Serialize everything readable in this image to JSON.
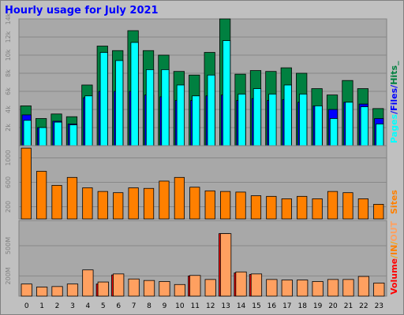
{
  "page": {
    "title": "Hourly usage for July 2021"
  },
  "colors": {
    "hits": "#008040",
    "files": "#0000ff",
    "pages": "#00ffff",
    "sites": "#ff8000",
    "volume_in": "#ff0000",
    "volume_out": "#ffa060",
    "panel_bg": "#a8a8a8",
    "frame_bg": "#c0c0c0"
  },
  "chart_data": [
    {
      "type": "bar",
      "panel": "hits-files-pages",
      "x": [
        "0",
        "1",
        "2",
        "3",
        "4",
        "5",
        "6",
        "7",
        "8",
        "9",
        "10",
        "11",
        "12",
        "13",
        "14",
        "15",
        "16",
        "17",
        "18",
        "19",
        "20",
        "21",
        "22",
        "23"
      ],
      "ylim": [
        0,
        14000
      ],
      "yticks": [
        "2k",
        "4k",
        "6k",
        "8k",
        "10k",
        "12k",
        "14k"
      ],
      "ytick_values": [
        2000,
        4000,
        6000,
        8000,
        10000,
        12000,
        14000
      ],
      "series": [
        {
          "name": "Hits",
          "color": "#008040",
          "values": [
            4400,
            3000,
            3500,
            3200,
            6700,
            11000,
            10500,
            12700,
            10500,
            10000,
            8200,
            7800,
            10300,
            14000,
            7900,
            8300,
            8200,
            8600,
            8000,
            6300,
            5600,
            7200,
            6300,
            4100
          ]
        },
        {
          "name": "Files",
          "color": "#0000ff",
          "values": [
            3400,
            2000,
            2700,
            2400,
            5300,
            6000,
            6000,
            6000,
            5600,
            5400,
            5000,
            5000,
            5500,
            5600,
            5000,
            5200,
            5000,
            5100,
            4800,
            4400,
            4000,
            4800,
            4600,
            3000
          ]
        },
        {
          "name": "Pages",
          "color": "#00ffff",
          "values": [
            2800,
            2000,
            2600,
            2300,
            5500,
            10300,
            9400,
            11400,
            8400,
            8400,
            6700,
            5500,
            7800,
            11600,
            5700,
            6300,
            5700,
            6700,
            5700,
            4400,
            3000,
            4800,
            4300,
            2400
          ]
        }
      ],
      "legend": [
        "Pages",
        "/",
        "Files",
        "/",
        "Hits",
        "_"
      ]
    },
    {
      "type": "bar",
      "panel": "sites",
      "ylim": [
        0,
        1200
      ],
      "yticks": [
        "200",
        "600",
        "1000"
      ],
      "ytick_values": [
        200,
        600,
        1000
      ],
      "series": [
        {
          "name": "Sites",
          "color": "#ff8000",
          "values": [
            1160,
            780,
            550,
            680,
            510,
            450,
            430,
            510,
            500,
            620,
            680,
            520,
            460,
            450,
            440,
            380,
            370,
            330,
            370,
            330,
            450,
            430,
            330,
            240
          ]
        }
      ],
      "legend": [
        "Sites"
      ]
    },
    {
      "type": "bar",
      "panel": "volume",
      "ylim": [
        0,
        750
      ],
      "yticks": [
        "200M",
        "500M"
      ],
      "ytick_values": [
        200,
        500
      ],
      "series": [
        {
          "name": "IN",
          "color": "#ff0000",
          "values": [
            0,
            0,
            0,
            0,
            0,
            120,
            210,
            0,
            0,
            0,
            0,
            200,
            0,
            620,
            230,
            215,
            0,
            0,
            0,
            0,
            0,
            0,
            0,
            0
          ]
        },
        {
          "name": "OUT",
          "color": "#ffa060",
          "values": [
            120,
            90,
            95,
            120,
            260,
            140,
            220,
            170,
            155,
            145,
            115,
            205,
            165,
            620,
            240,
            220,
            165,
            160,
            160,
            145,
            165,
            165,
            195,
            130
          ]
        }
      ],
      "legend": [
        "Volume",
        "/",
        "IN",
        "/",
        "OUT"
      ]
    }
  ]
}
